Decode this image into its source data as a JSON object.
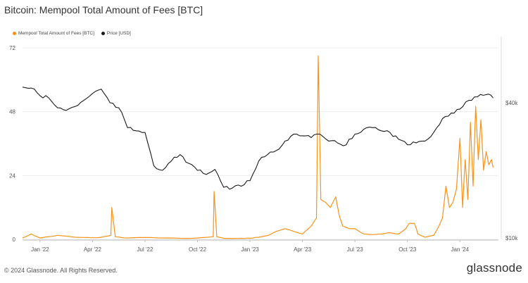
{
  "title": "Bitcoin: Mempool Total Amount of Fees [BTC]",
  "footer": "© 2024 Glassnode. All Rights Reserved.",
  "brand": "glassnode",
  "colors": {
    "fees": "#f7931a",
    "price": "#1a1a1a",
    "grid": "#ececec",
    "axis": "#555555"
  },
  "chart_data": {
    "type": "line",
    "legend": [
      "Mempool Total Amount of Fees [BTC]",
      "Price [USD]"
    ],
    "legend_placement": "top-left",
    "x_ticks": [
      "Jan '22",
      "Apr '22",
      "Jul '22",
      "Oct '22",
      "Jan '23",
      "Apr '23",
      "Jul '23",
      "Oct '23",
      "Jan '24"
    ],
    "y_left": {
      "ticks": [
        "0",
        "24",
        "48",
        "72"
      ],
      "range": [
        0,
        72
      ]
    },
    "y_right": {
      "ticks": [
        "$10k",
        "$40k"
      ],
      "scale": "log"
    },
    "series": [
      {
        "name": "Mempool Total Amount of Fees [BTC]",
        "axis": "left",
        "points": [
          [
            0,
            0.5
          ],
          [
            0.5,
            2
          ],
          [
            1,
            0.5
          ],
          [
            2,
            1.5
          ],
          [
            3,
            0.8
          ],
          [
            4,
            0.6
          ],
          [
            4.5,
            0.8
          ],
          [
            5.05,
            1.5
          ],
          [
            5.1,
            12
          ],
          [
            5.3,
            1
          ],
          [
            6,
            0.5
          ],
          [
            7,
            0.7
          ],
          [
            8,
            0.5
          ],
          [
            9,
            0.4
          ],
          [
            10,
            0.5
          ],
          [
            10.9,
            1.0
          ],
          [
            10.95,
            18
          ],
          [
            11.1,
            1.0
          ],
          [
            11.5,
            0.4
          ],
          [
            12,
            0.3
          ],
          [
            12.5,
            0.4
          ],
          [
            13,
            0.4
          ],
          [
            13.5,
            0.8
          ],
          [
            14,
            1.4
          ],
          [
            14.5,
            3
          ],
          [
            15,
            4
          ],
          [
            15.5,
            3
          ],
          [
            16,
            2
          ],
          [
            16.5,
            5
          ],
          [
            16.8,
            8
          ],
          [
            16.9,
            69
          ],
          [
            17.05,
            15
          ],
          [
            17.3,
            14
          ],
          [
            17.6,
            12
          ],
          [
            17.9,
            16
          ],
          [
            18.1,
            9
          ],
          [
            18.3,
            5
          ],
          [
            18.7,
            4
          ],
          [
            19,
            4
          ],
          [
            19.5,
            2
          ],
          [
            20,
            1.8
          ],
          [
            20.5,
            2
          ],
          [
            21,
            2.5
          ],
          [
            21.5,
            2
          ],
          [
            21.9,
            4
          ],
          [
            22,
            5
          ],
          [
            22.1,
            6
          ],
          [
            22.4,
            6
          ],
          [
            22.6,
            2
          ],
          [
            23,
            0.8
          ],
          [
            23.5,
            1.5
          ],
          [
            23.8,
            5
          ],
          [
            24,
            8
          ],
          [
            24.2,
            20
          ],
          [
            24.4,
            12
          ],
          [
            24.6,
            14
          ],
          [
            24.8,
            19
          ],
          [
            25,
            38
          ],
          [
            25.15,
            12
          ],
          [
            25.3,
            30
          ],
          [
            25.45,
            15
          ],
          [
            25.6,
            44
          ],
          [
            25.75,
            20
          ],
          [
            25.9,
            50
          ],
          [
            26.05,
            30
          ],
          [
            26.2,
            45
          ],
          [
            26.35,
            26
          ],
          [
            26.5,
            33
          ],
          [
            26.65,
            28
          ],
          [
            26.8,
            30
          ],
          [
            26.9,
            27
          ]
        ]
      },
      {
        "name": "Price [USD]",
        "axis": "right",
        "points": [
          [
            0,
            47000
          ],
          [
            0.5,
            46500
          ],
          [
            1,
            43000
          ],
          [
            1.5,
            42000
          ],
          [
            2,
            38000
          ],
          [
            2.5,
            37000
          ],
          [
            3,
            38500
          ],
          [
            3.5,
            41000
          ],
          [
            4,
            44000
          ],
          [
            4.5,
            46000
          ],
          [
            5,
            40000
          ],
          [
            5.5,
            38000
          ],
          [
            6,
            31000
          ],
          [
            6.5,
            30000
          ],
          [
            7,
            29500
          ],
          [
            7.5,
            21000
          ],
          [
            8,
            20000
          ],
          [
            8.5,
            22000
          ],
          [
            9,
            23500
          ],
          [
            9.5,
            21500
          ],
          [
            10,
            20000
          ],
          [
            10.5,
            19200
          ],
          [
            11,
            20200
          ],
          [
            11.5,
            16800
          ],
          [
            12,
            16700
          ],
          [
            12.5,
            17000
          ],
          [
            13,
            18000
          ],
          [
            13.5,
            22000
          ],
          [
            14,
            23500
          ],
          [
            14.5,
            24500
          ],
          [
            15,
            27000
          ],
          [
            15.5,
            29000
          ],
          [
            16,
            28500
          ],
          [
            16.5,
            28000
          ],
          [
            17,
            29000
          ],
          [
            17.5,
            27000
          ],
          [
            18,
            26500
          ],
          [
            18.5,
            26000
          ],
          [
            19,
            29000
          ],
          [
            19.5,
            30500
          ],
          [
            20,
            31000
          ],
          [
            20.5,
            30000
          ],
          [
            21,
            29500
          ],
          [
            21.5,
            27500
          ],
          [
            22,
            26000
          ],
          [
            22.5,
            26500
          ],
          [
            23,
            27000
          ],
          [
            23.5,
            29500
          ],
          [
            24,
            34000
          ],
          [
            24.5,
            36000
          ],
          [
            25,
            37500
          ],
          [
            25.5,
            41000
          ],
          [
            26,
            42500
          ],
          [
            26.5,
            43500
          ],
          [
            26.9,
            42000
          ]
        ]
      }
    ]
  }
}
